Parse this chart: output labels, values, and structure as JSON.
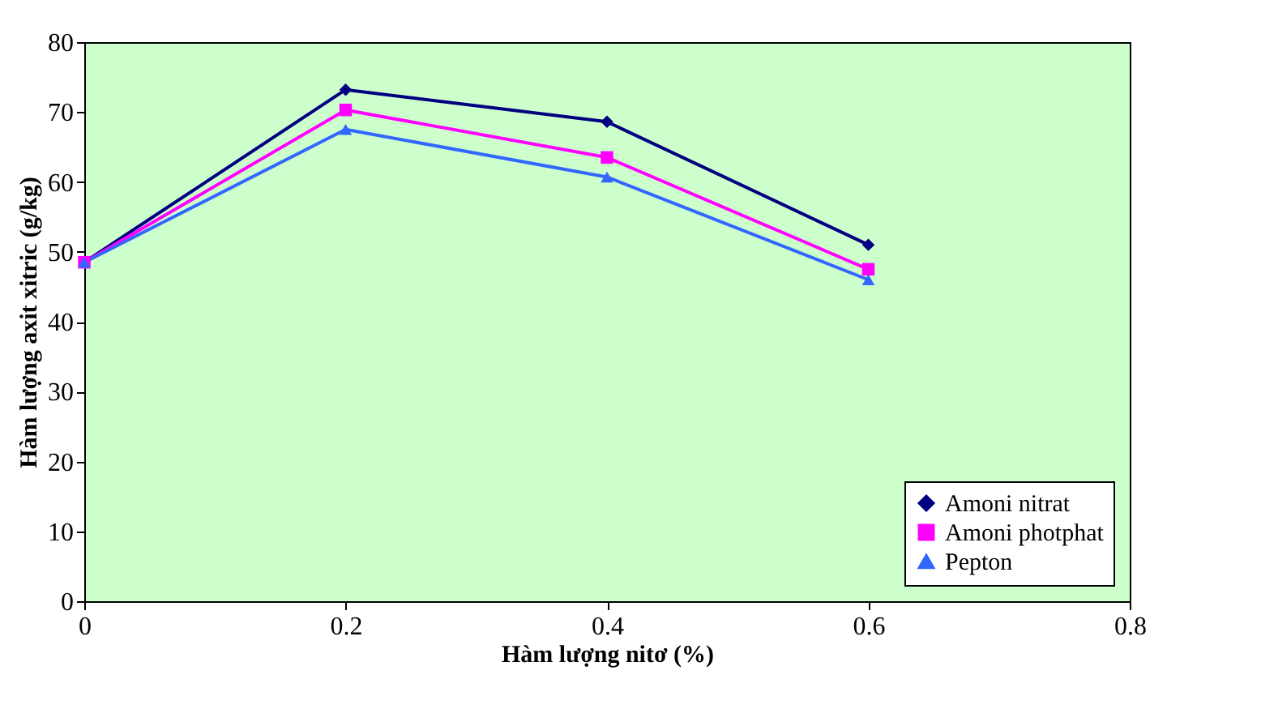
{
  "chart_data": {
    "type": "line",
    "xlabel": "Hàm lượng nitơ (%)",
    "ylabel": "Hàm lượng axit xitric (g/kg)",
    "x": [
      0,
      0.2,
      0.4,
      0.6
    ],
    "series": [
      {
        "name": "Amoni nitrat",
        "color": "#000080",
        "marker": "diamond",
        "values": [
          48.5,
          73.2,
          68.6,
          51
        ]
      },
      {
        "name": "Amoni photphat",
        "color": "#ff00ff",
        "marker": "square",
        "values": [
          48.5,
          70.3,
          63.5,
          47.5
        ]
      },
      {
        "name": "Pepton",
        "color": "#3366ff",
        "marker": "triangle",
        "values": [
          48.5,
          67.5,
          60.7,
          46
        ]
      }
    ],
    "xlim": [
      0,
      0.8
    ],
    "xticks": [
      {
        "value": 0,
        "label": "0"
      },
      {
        "value": 0.2,
        "label": "0.2"
      },
      {
        "value": 0.4,
        "label": "0.4"
      },
      {
        "value": 0.6,
        "label": "0.6"
      },
      {
        "value": 0.8,
        "label": "0.8"
      }
    ],
    "ylim": [
      0,
      80
    ],
    "yticks": [
      0,
      10,
      20,
      30,
      40,
      50,
      60,
      70,
      80
    ],
    "grid": false,
    "legend": "bottom right",
    "line_style": "solid"
  }
}
